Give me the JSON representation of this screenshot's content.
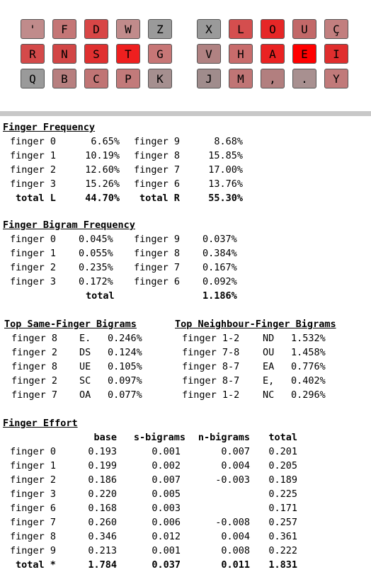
{
  "keyboard": {
    "left": [
      [
        {
          "k": "'",
          "c": "#c08b8b"
        },
        {
          "k": "F",
          "c": "#c47676"
        },
        {
          "k": "D",
          "c": "#d84646"
        },
        {
          "k": "W",
          "c": "#c18b8b"
        },
        {
          "k": "Z",
          "c": "#9a9a9a"
        }
      ],
      [
        {
          "k": "R",
          "c": "#d44a4a"
        },
        {
          "k": "N",
          "c": "#d24646"
        },
        {
          "k": "S",
          "c": "#e03030"
        },
        {
          "k": "T",
          "c": "#ee1f1f"
        },
        {
          "k": "G",
          "c": "#c77676"
        }
      ],
      [
        {
          "k": "Q",
          "c": "#9a9a9a"
        },
        {
          "k": "B",
          "c": "#b77f7f"
        },
        {
          "k": "C",
          "c": "#c07474"
        },
        {
          "k": "P",
          "c": "#c27a7a"
        },
        {
          "k": "K",
          "c": "#a58f8f"
        }
      ]
    ],
    "right": [
      [
        {
          "k": "X",
          "c": "#9a9a9a"
        },
        {
          "k": "L",
          "c": "#d44e4e"
        },
        {
          "k": "O",
          "c": "#e62727"
        },
        {
          "k": "U",
          "c": "#c26868"
        },
        {
          "k": "Ç",
          "c": "#c27f7f"
        }
      ],
      [
        {
          "k": "V",
          "c": "#b08282"
        },
        {
          "k": "H",
          "c": "#c86c6c"
        },
        {
          "k": "A",
          "c": "#ea2222"
        },
        {
          "k": "E",
          "c": "#ff0000"
        },
        {
          "k": "I",
          "c": "#e02e2e"
        }
      ],
      [
        {
          "k": "J",
          "c": "#a08c8c"
        },
        {
          "k": "M",
          "c": "#c07575"
        },
        {
          "k": ",",
          "c": "#b27f7f"
        },
        {
          "k": ".",
          "c": "#a89090"
        },
        {
          "k": "Y",
          "c": "#c17a7a"
        }
      ]
    ]
  },
  "finger_frequency": {
    "title": "Finger Frequency",
    "rows": [
      {
        "l": "finger 0",
        "lv": "6.65%",
        "r": "finger 9",
        "rv": "8.68%"
      },
      {
        "l": "finger 1",
        "lv": "10.19%",
        "r": "finger 8",
        "rv": "15.85%"
      },
      {
        "l": "finger 2",
        "lv": "12.60%",
        "r": "finger 7",
        "rv": "17.00%"
      },
      {
        "l": "finger 3",
        "lv": "15.26%",
        "r": "finger 6",
        "rv": "13.76%"
      }
    ],
    "total_l_label": "total L",
    "total_l": "44.70%",
    "total_r_label": "total R",
    "total_r": "55.30%"
  },
  "bigram_frequency": {
    "title": "Finger Bigram Frequency",
    "rows": [
      {
        "l": "finger 0",
        "lv": "0.045%",
        "r": "finger 9",
        "rv": "0.037%"
      },
      {
        "l": "finger 1",
        "lv": "0.055%",
        "r": "finger 8",
        "rv": "0.384%"
      },
      {
        "l": "finger 2",
        "lv": "0.235%",
        "r": "finger 7",
        "rv": "0.167%"
      },
      {
        "l": "finger 3",
        "lv": "0.172%",
        "r": "finger 6",
        "rv": "0.092%"
      }
    ],
    "total_label": "total",
    "total": "1.186%"
  },
  "same_finger": {
    "title": "Top Same-Finger Bigrams",
    "rows": [
      {
        "f": "finger 8",
        "b": "E.",
        "v": "0.246%"
      },
      {
        "f": "finger 2",
        "b": "DS",
        "v": "0.124%"
      },
      {
        "f": "finger 8",
        "b": "UE",
        "v": "0.105%"
      },
      {
        "f": "finger 2",
        "b": "SC",
        "v": "0.097%"
      },
      {
        "f": "finger 7",
        "b": "OA",
        "v": "0.077%"
      }
    ]
  },
  "neighbour_finger": {
    "title": "Top Neighbour-Finger Bigrams",
    "rows": [
      {
        "f": "finger 1-2",
        "b": "ND",
        "v": "1.532%"
      },
      {
        "f": "finger 7-8",
        "b": "OU",
        "v": "1.458%"
      },
      {
        "f": "finger 8-7",
        "b": "EA",
        "v": "0.776%"
      },
      {
        "f": "finger 8-7",
        "b": "E,",
        "v": "0.402%"
      },
      {
        "f": "finger 1-2",
        "b": "NC",
        "v": "0.296%"
      }
    ]
  },
  "effort": {
    "title": "Finger Effort",
    "headers": [
      "base",
      "s-bigrams",
      "n-bigrams",
      "total"
    ],
    "rows": [
      {
        "f": "finger 0",
        "base": "0.193",
        "s": "0.001",
        "n": "0.007",
        "t": "0.201"
      },
      {
        "f": "finger 1",
        "base": "0.199",
        "s": "0.002",
        "n": "0.004",
        "t": "0.205"
      },
      {
        "f": "finger 2",
        "base": "0.186",
        "s": "0.007",
        "n": "-0.003",
        "t": "0.189"
      },
      {
        "f": "finger 3",
        "base": "0.220",
        "s": "0.005",
        "n": "",
        "t": "0.225"
      },
      {
        "f": "finger 6",
        "base": "0.168",
        "s": "0.003",
        "n": "",
        "t": "0.171"
      },
      {
        "f": "finger 7",
        "base": "0.260",
        "s": "0.006",
        "n": "-0.008",
        "t": "0.257"
      },
      {
        "f": "finger 8",
        "base": "0.346",
        "s": "0.012",
        "n": "0.004",
        "t": "0.361"
      },
      {
        "f": "finger 9",
        "base": "0.213",
        "s": "0.001",
        "n": "0.008",
        "t": "0.222"
      }
    ],
    "total_row": {
      "f": "total *",
      "base": "1.784",
      "s": "0.037",
      "n": "0.011",
      "t": "1.831"
    }
  }
}
